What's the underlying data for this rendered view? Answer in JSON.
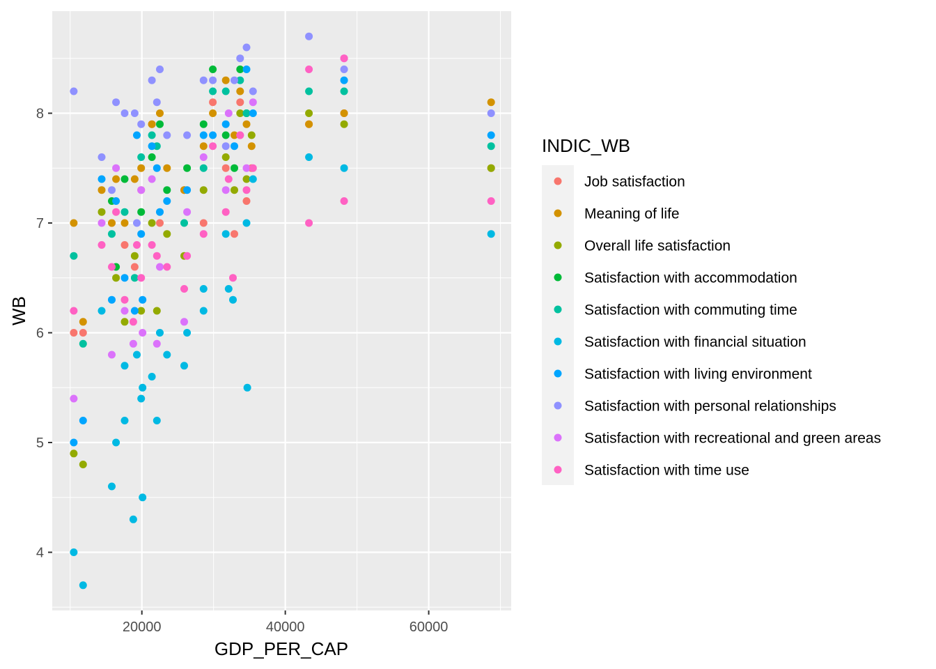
{
  "chart_data": {
    "type": "scatter",
    "xlabel": "GDP_PER_CAP",
    "ylabel": "WB",
    "xlim": [
      7500,
      71500
    ],
    "ylim": [
      3.47,
      8.93
    ],
    "xticks": [
      20000,
      40000,
      60000
    ],
    "yticks": [
      4,
      5,
      6,
      7,
      8
    ],
    "grid": true,
    "legend": {
      "title": "INDIC_WB",
      "position": "right"
    },
    "series": [
      {
        "name": "Job satisfaction",
        "color": "#F8766D",
        "points": [
          [
            10500,
            6.0
          ],
          [
            11800,
            6.0
          ],
          [
            15800,
            7.0
          ],
          [
            17600,
            6.8
          ],
          [
            19000,
            6.6
          ],
          [
            19900,
            7.3
          ],
          [
            21400,
            7.9
          ],
          [
            22500,
            7.0
          ],
          [
            25900,
            7.3
          ],
          [
            28600,
            7.0
          ],
          [
            29900,
            8.1
          ],
          [
            31700,
            7.5
          ],
          [
            32900,
            6.9
          ],
          [
            33700,
            8.1
          ],
          [
            34600,
            7.2
          ],
          [
            35300,
            7.5
          ],
          [
            43300,
            7.9
          ],
          [
            48200,
            8.0
          ],
          [
            68700,
            7.5
          ]
        ]
      },
      {
        "name": "Meaning of life",
        "color": "#D39200",
        "points": [
          [
            10500,
            7.0
          ],
          [
            11800,
            6.1
          ],
          [
            14400,
            7.3
          ],
          [
            15800,
            7.0
          ],
          [
            16400,
            7.4
          ],
          [
            17600,
            7.0
          ],
          [
            19000,
            7.4
          ],
          [
            19900,
            7.5
          ],
          [
            21400,
            7.9
          ],
          [
            22500,
            8.0
          ],
          [
            23500,
            7.5
          ],
          [
            25900,
            7.3
          ],
          [
            28600,
            7.7
          ],
          [
            29900,
            8.0
          ],
          [
            31700,
            8.3
          ],
          [
            32900,
            7.8
          ],
          [
            33700,
            8.2
          ],
          [
            34600,
            7.9
          ],
          [
            35300,
            7.7
          ],
          [
            43300,
            7.9
          ],
          [
            48200,
            8.0
          ],
          [
            68700,
            8.1
          ]
        ]
      },
      {
        "name": "Overall life satisfaction",
        "color": "#93AA00",
        "points": [
          [
            10500,
            4.9
          ],
          [
            11800,
            4.8
          ],
          [
            14400,
            7.1
          ],
          [
            16400,
            6.5
          ],
          [
            17600,
            6.1
          ],
          [
            19000,
            6.7
          ],
          [
            19900,
            6.2
          ],
          [
            21400,
            7.0
          ],
          [
            22100,
            6.2
          ],
          [
            23500,
            6.9
          ],
          [
            25900,
            6.7
          ],
          [
            28600,
            7.3
          ],
          [
            31700,
            7.6
          ],
          [
            32900,
            7.3
          ],
          [
            33700,
            8.0
          ],
          [
            34600,
            7.4
          ],
          [
            35300,
            7.8
          ],
          [
            43300,
            8.0
          ],
          [
            48200,
            7.9
          ],
          [
            68700,
            7.5
          ]
        ]
      },
      {
        "name": "Satisfaction with accommodation",
        "color": "#00BA38",
        "points": [
          [
            15800,
            7.2
          ],
          [
            16400,
            6.6
          ],
          [
            17600,
            7.4
          ],
          [
            19900,
            7.1
          ],
          [
            21400,
            7.6
          ],
          [
            22500,
            7.9
          ],
          [
            23500,
            7.3
          ],
          [
            26300,
            7.5
          ],
          [
            28600,
            7.9
          ],
          [
            29900,
            8.4
          ],
          [
            31700,
            7.8
          ],
          [
            32900,
            7.5
          ],
          [
            33700,
            8.4
          ],
          [
            34600,
            8.0
          ]
        ]
      },
      {
        "name": "Satisfaction with commuting time",
        "color": "#00C19F",
        "points": [
          [
            10500,
            6.7
          ],
          [
            11800,
            5.9
          ],
          [
            15800,
            6.9
          ],
          [
            17600,
            7.1
          ],
          [
            19000,
            6.5
          ],
          [
            19900,
            7.6
          ],
          [
            21400,
            7.8
          ],
          [
            22100,
            7.7
          ],
          [
            25900,
            7.0
          ],
          [
            28600,
            7.5
          ],
          [
            29900,
            8.2
          ],
          [
            31700,
            8.2
          ],
          [
            33700,
            8.3
          ],
          [
            34600,
            8.0
          ],
          [
            43300,
            8.2
          ],
          [
            48200,
            8.2
          ],
          [
            68700,
            7.7
          ]
        ]
      },
      {
        "name": "Satisfaction with financial situation",
        "color": "#00B9E3",
        "points": [
          [
            10500,
            4.0
          ],
          [
            11800,
            3.7
          ],
          [
            14400,
            6.2
          ],
          [
            15800,
            4.6
          ],
          [
            16400,
            5.0
          ],
          [
            17600,
            5.2
          ],
          [
            17600,
            5.7
          ],
          [
            18800,
            4.3
          ],
          [
            19300,
            5.8
          ],
          [
            19900,
            5.4
          ],
          [
            20100,
            5.5
          ],
          [
            20100,
            4.5
          ],
          [
            21400,
            5.6
          ],
          [
            22100,
            5.2
          ],
          [
            22500,
            6.0
          ],
          [
            23500,
            5.8
          ],
          [
            25900,
            5.7
          ],
          [
            26300,
            6.0
          ],
          [
            28600,
            6.4
          ],
          [
            28600,
            6.2
          ],
          [
            31700,
            6.9
          ],
          [
            32100,
            6.4
          ],
          [
            32700,
            6.3
          ],
          [
            34600,
            7.0
          ],
          [
            34700,
            5.5
          ],
          [
            35500,
            7.4
          ],
          [
            43300,
            7.6
          ],
          [
            48200,
            7.5
          ],
          [
            68700,
            6.9
          ]
        ]
      },
      {
        "name": "Satisfaction with living environment",
        "color": "#00A5FF",
        "points": [
          [
            10500,
            5.0
          ],
          [
            11800,
            5.2
          ],
          [
            14400,
            7.4
          ],
          [
            15800,
            6.3
          ],
          [
            16400,
            7.2
          ],
          [
            17600,
            6.5
          ],
          [
            19000,
            6.2
          ],
          [
            19300,
            7.8
          ],
          [
            19900,
            6.9
          ],
          [
            20100,
            6.3
          ],
          [
            21400,
            7.7
          ],
          [
            22100,
            7.5
          ],
          [
            22500,
            7.1
          ],
          [
            23500,
            7.2
          ],
          [
            26300,
            7.3
          ],
          [
            28600,
            7.8
          ],
          [
            29900,
            7.8
          ],
          [
            31700,
            7.9
          ],
          [
            32900,
            7.7
          ],
          [
            34600,
            8.4
          ],
          [
            35500,
            8.0
          ],
          [
            48200,
            8.3
          ],
          [
            68700,
            7.8
          ]
        ]
      },
      {
        "name": "Satisfaction with personal relationships",
        "color": "#8F91FF",
        "points": [
          [
            10500,
            8.2
          ],
          [
            14400,
            7.6
          ],
          [
            15800,
            7.3
          ],
          [
            16400,
            8.1
          ],
          [
            17600,
            8.0
          ],
          [
            19000,
            8.0
          ],
          [
            19300,
            7.0
          ],
          [
            19900,
            7.9
          ],
          [
            21400,
            8.3
          ],
          [
            22100,
            8.1
          ],
          [
            22500,
            8.4
          ],
          [
            23500,
            7.8
          ],
          [
            26300,
            7.8
          ],
          [
            28600,
            8.3
          ],
          [
            29900,
            8.3
          ],
          [
            31700,
            7.7
          ],
          [
            32900,
            8.3
          ],
          [
            33700,
            8.5
          ],
          [
            34600,
            8.6
          ],
          [
            35500,
            8.2
          ],
          [
            43300,
            8.7
          ],
          [
            48200,
            8.4
          ],
          [
            68700,
            8.0
          ]
        ]
      },
      {
        "name": "Satisfaction with recreational and green areas",
        "color": "#DB72FB",
        "points": [
          [
            10500,
            5.4
          ],
          [
            14400,
            7.0
          ],
          [
            15800,
            5.8
          ],
          [
            16400,
            7.5
          ],
          [
            17600,
            6.2
          ],
          [
            18800,
            5.9
          ],
          [
            19900,
            7.3
          ],
          [
            20100,
            6.0
          ],
          [
            21400,
            7.4
          ],
          [
            22100,
            5.9
          ],
          [
            22500,
            6.6
          ],
          [
            25900,
            6.1
          ],
          [
            26300,
            7.1
          ],
          [
            28600,
            7.6
          ],
          [
            31700,
            7.3
          ],
          [
            32100,
            8.0
          ],
          [
            33700,
            7.8
          ],
          [
            34600,
            7.5
          ],
          [
            35500,
            8.1
          ],
          [
            48200,
            8.5
          ]
        ]
      },
      {
        "name": "Satisfaction with time use",
        "color": "#FF61C3",
        "points": [
          [
            10500,
            6.2
          ],
          [
            14400,
            6.8
          ],
          [
            15800,
            6.6
          ],
          [
            16400,
            7.1
          ],
          [
            17600,
            6.3
          ],
          [
            18800,
            6.1
          ],
          [
            19300,
            6.8
          ],
          [
            19900,
            6.5
          ],
          [
            21400,
            6.8
          ],
          [
            22100,
            6.7
          ],
          [
            23500,
            6.6
          ],
          [
            25900,
            6.4
          ],
          [
            26300,
            6.7
          ],
          [
            28600,
            6.9
          ],
          [
            29900,
            7.7
          ],
          [
            31700,
            7.1
          ],
          [
            32100,
            7.4
          ],
          [
            32700,
            6.5
          ],
          [
            33700,
            7.8
          ],
          [
            34600,
            7.3
          ],
          [
            35500,
            7.5
          ],
          [
            43300,
            7.0
          ],
          [
            43300,
            8.4
          ],
          [
            48200,
            7.2
          ],
          [
            48200,
            8.5
          ],
          [
            68700,
            7.2
          ]
        ]
      }
    ]
  }
}
